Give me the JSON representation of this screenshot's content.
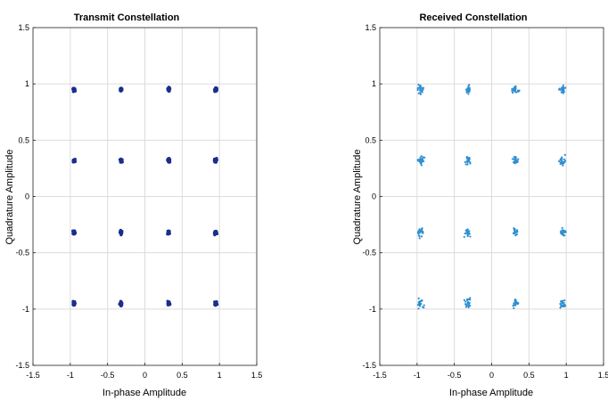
{
  "chart_data": [
    {
      "type": "scatter",
      "title": "Transmit Constellation",
      "xlabel": "In-phase Amplitude",
      "ylabel": "Quadrature Amplitude",
      "xlim": [
        -1.5,
        1.5
      ],
      "ylim": [
        -1.5,
        1.5
      ],
      "xticks": [
        "-1.5",
        "-1",
        "-0.5",
        "0",
        "0.5",
        "1",
        "1.5"
      ],
      "yticks": [
        "-1.5",
        "-1",
        "-0.5",
        "0",
        "0.5",
        "1",
        "1.5"
      ],
      "grid": true,
      "marker_color": "#1a2f8c",
      "noise_spread": 0.025,
      "points_per_symbol": 40,
      "series": [
        {
          "symbols": [
            [
              -0.95,
              0.95
            ],
            [
              -0.32,
              0.95
            ],
            [
              0.32,
              0.95
            ],
            [
              0.95,
              0.95
            ],
            [
              -0.95,
              0.32
            ],
            [
              -0.32,
              0.32
            ],
            [
              0.32,
              0.32
            ],
            [
              0.95,
              0.32
            ],
            [
              -0.95,
              -0.32
            ],
            [
              -0.32,
              -0.32
            ],
            [
              0.32,
              -0.32
            ],
            [
              0.95,
              -0.32
            ],
            [
              -0.95,
              -0.95
            ],
            [
              -0.32,
              -0.95
            ],
            [
              0.32,
              -0.95
            ],
            [
              0.95,
              -0.95
            ]
          ]
        }
      ]
    },
    {
      "type": "scatter",
      "title": "Received Constellation",
      "xlabel": "In-phase Amplitude",
      "ylabel": "Quadrature Amplitude",
      "xlim": [
        -1.5,
        1.5
      ],
      "ylim": [
        -1.5,
        1.5
      ],
      "xticks": [
        "-1.5",
        "-1",
        "-0.5",
        "0",
        "0.5",
        "1",
        "1.5"
      ],
      "yticks": [
        "-1.5",
        "-1",
        "-0.5",
        "0",
        "0.5",
        "1",
        "1.5"
      ],
      "grid": true,
      "marker_color": "#2f8fd0",
      "noise_spread": 0.06,
      "points_per_symbol": 22,
      "series": [
        {
          "symbols": [
            [
              -0.95,
              0.95
            ],
            [
              -0.32,
              0.95
            ],
            [
              0.32,
              0.95
            ],
            [
              0.95,
              0.95
            ],
            [
              -0.95,
              0.32
            ],
            [
              -0.32,
              0.32
            ],
            [
              0.32,
              0.32
            ],
            [
              0.95,
              0.32
            ],
            [
              -0.95,
              -0.32
            ],
            [
              -0.32,
              -0.32
            ],
            [
              0.32,
              -0.32
            ],
            [
              0.95,
              -0.32
            ],
            [
              -0.95,
              -0.95
            ],
            [
              -0.32,
              -0.95
            ],
            [
              0.32,
              -0.95
            ],
            [
              0.95,
              -0.95
            ]
          ]
        }
      ]
    }
  ]
}
